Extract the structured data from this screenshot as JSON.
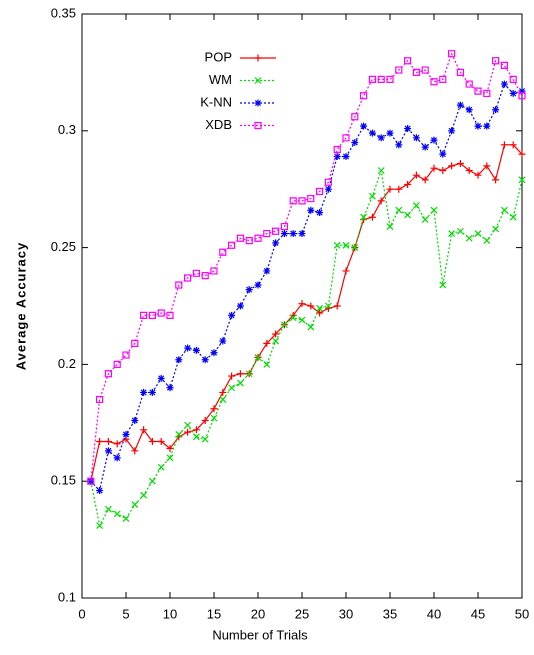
{
  "chart_data": {
    "type": "line",
    "xlabel": "Number of Trials",
    "ylabel": "Average Accuracy",
    "x": [
      1,
      2,
      3,
      4,
      5,
      6,
      7,
      8,
      9,
      10,
      11,
      12,
      13,
      14,
      15,
      16,
      17,
      18,
      19,
      20,
      21,
      22,
      23,
      24,
      25,
      26,
      27,
      28,
      29,
      30,
      31,
      32,
      33,
      34,
      35,
      36,
      37,
      38,
      39,
      40,
      41,
      42,
      43,
      44,
      45,
      46,
      47,
      48,
      49,
      50
    ],
    "series": [
      {
        "name": "POP",
        "color": "#ff0000",
        "marker": "plus",
        "dash": "solid",
        "values": [
          0.15,
          0.167,
          0.167,
          0.166,
          0.168,
          0.163,
          0.172,
          0.167,
          0.167,
          0.164,
          0.169,
          0.171,
          0.172,
          0.176,
          0.181,
          0.188,
          0.195,
          0.196,
          0.196,
          0.203,
          0.209,
          0.213,
          0.217,
          0.221,
          0.226,
          0.225,
          0.222,
          0.224,
          0.225,
          0.24,
          0.25,
          0.262,
          0.263,
          0.27,
          0.275,
          0.275,
          0.277,
          0.281,
          0.279,
          0.284,
          0.283,
          0.285,
          0.286,
          0.283,
          0.281,
          0.285,
          0.279,
          0.294,
          0.294,
          0.29
        ]
      },
      {
        "name": "WM",
        "color": "#00dd00",
        "marker": "cross",
        "dash": "dotted",
        "values": [
          0.15,
          0.131,
          0.138,
          0.136,
          0.134,
          0.14,
          0.144,
          0.15,
          0.156,
          0.16,
          0.17,
          0.174,
          0.169,
          0.168,
          0.177,
          0.185,
          0.19,
          0.192,
          0.196,
          0.203,
          0.2,
          0.21,
          0.217,
          0.22,
          0.219,
          0.216,
          0.224,
          0.225,
          0.251,
          0.251,
          0.25,
          0.263,
          0.272,
          0.283,
          0.259,
          0.266,
          0.264,
          0.268,
          0.262,
          0.266,
          0.234,
          0.256,
          0.257,
          0.254,
          0.256,
          0.253,
          0.258,
          0.266,
          0.263,
          0.279
        ]
      },
      {
        "name": "K-NN",
        "color": "#0000ff",
        "marker": "star",
        "dash": "dotted",
        "values": [
          0.15,
          0.146,
          0.163,
          0.16,
          0.17,
          0.176,
          0.188,
          0.188,
          0.194,
          0.19,
          0.202,
          0.207,
          0.206,
          0.202,
          0.205,
          0.21,
          0.221,
          0.225,
          0.232,
          0.234,
          0.24,
          0.252,
          0.256,
          0.256,
          0.256,
          0.266,
          0.265,
          0.275,
          0.289,
          0.289,
          0.295,
          0.302,
          0.299,
          0.297,
          0.299,
          0.294,
          0.301,
          0.297,
          0.293,
          0.296,
          0.29,
          0.3,
          0.311,
          0.309,
          0.302,
          0.302,
          0.309,
          0.32,
          0.316,
          0.317
        ]
      },
      {
        "name": "XDB",
        "color": "#ff00ff",
        "marker": "square",
        "dash": "dotted",
        "values": [
          0.15,
          0.185,
          0.196,
          0.2,
          0.204,
          0.209,
          0.221,
          0.221,
          0.222,
          0.221,
          0.234,
          0.237,
          0.239,
          0.238,
          0.24,
          0.248,
          0.251,
          0.254,
          0.253,
          0.254,
          0.256,
          0.257,
          0.259,
          0.27,
          0.27,
          0.271,
          0.274,
          0.278,
          0.292,
          0.297,
          0.306,
          0.315,
          0.322,
          0.322,
          0.322,
          0.326,
          0.33,
          0.325,
          0.326,
          0.321,
          0.322,
          0.333,
          0.325,
          0.32,
          0.317,
          0.316,
          0.33,
          0.328,
          0.322,
          0.315
        ]
      }
    ],
    "xlim": [
      0,
      50
    ],
    "xticks": [
      0,
      5,
      10,
      15,
      20,
      25,
      30,
      35,
      40,
      45,
      50
    ],
    "ylim": [
      0.1,
      0.35
    ],
    "yticks": [
      0.1,
      0.15,
      0.2,
      0.25,
      0.3,
      0.35
    ],
    "legend": "upper left"
  }
}
